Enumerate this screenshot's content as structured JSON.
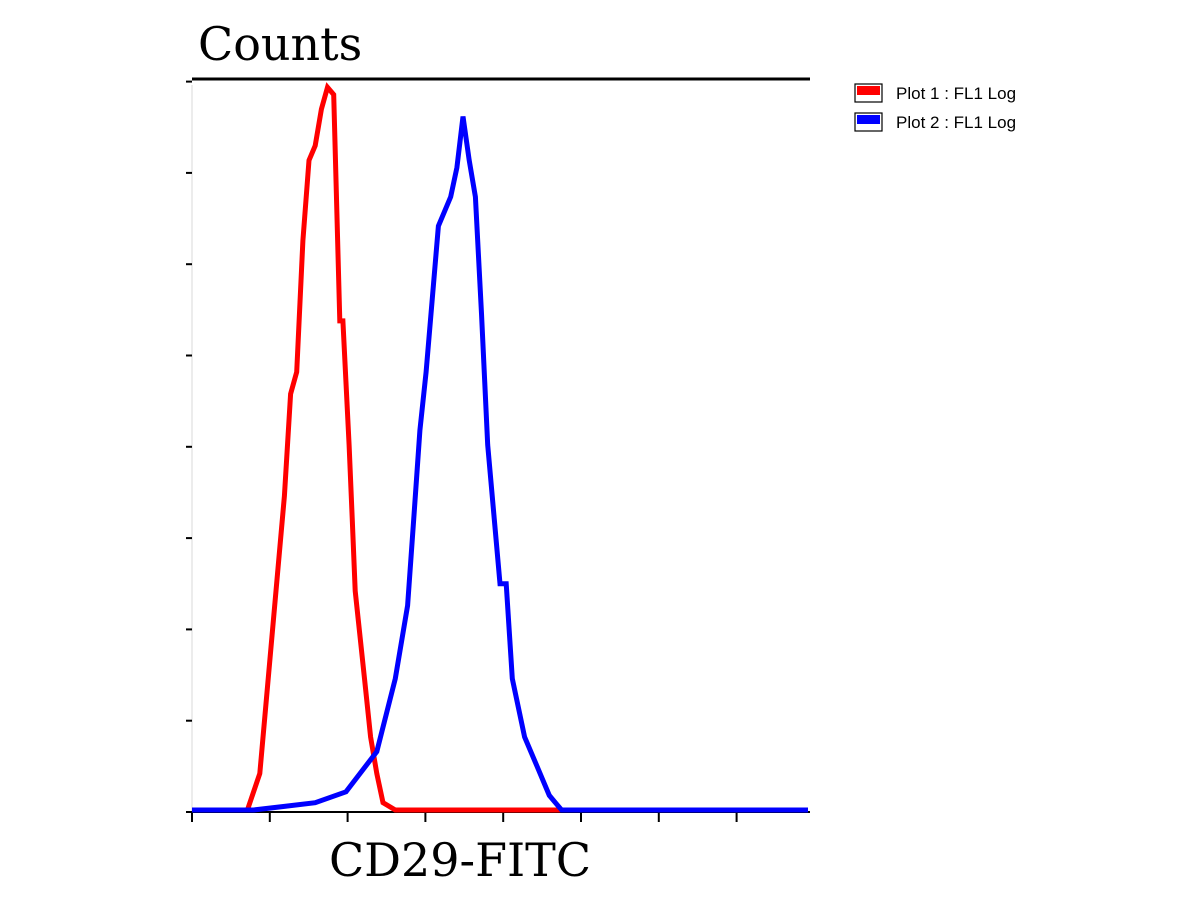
{
  "chart_data": {
    "type": "line",
    "title": "Counts",
    "xlabel": "CD29-FITC",
    "ylabel": "",
    "x_scale": "log",
    "xlim": [
      0,
      1
    ],
    "ylim": [
      0,
      1
    ],
    "grid": false,
    "legend_position": "top-right",
    "series": [
      {
        "name": "Plot 1 : FL1 Log",
        "color": "#ff0000",
        "x": [
          0,
          0.09,
          0.11,
          0.13,
          0.15,
          0.16,
          0.17,
          0.18,
          0.19,
          0.2,
          0.21,
          0.22,
          0.23,
          0.24,
          0.245,
          0.255,
          0.26,
          0.265,
          0.27,
          0.28,
          0.29,
          0.3,
          0.31,
          0.33,
          0.35,
          1
        ],
        "values": [
          0,
          0,
          0.05,
          0.24,
          0.43,
          0.57,
          0.6,
          0.78,
          0.89,
          0.91,
          0.96,
          0.99,
          0.98,
          0.67,
          0.67,
          0.5,
          0.4,
          0.3,
          0.26,
          0.18,
          0.1,
          0.05,
          0.01,
          0,
          0,
          0
        ]
      },
      {
        "name": "Plot 2 : FL1 Log",
        "color": "#0000ff",
        "x": [
          0,
          0.1,
          0.15,
          0.2,
          0.25,
          0.3,
          0.33,
          0.35,
          0.36,
          0.37,
          0.38,
          0.4,
          0.42,
          0.43,
          0.44,
          0.45,
          0.46,
          0.47,
          0.48,
          0.5,
          0.51,
          0.52,
          0.54,
          0.56,
          0.58,
          0.59,
          0.6,
          1
        ],
        "values": [
          0,
          0,
          0.005,
          0.01,
          0.025,
          0.08,
          0.18,
          0.28,
          0.4,
          0.52,
          0.6,
          0.8,
          0.84,
          0.88,
          0.95,
          0.89,
          0.84,
          0.68,
          0.5,
          0.31,
          0.31,
          0.18,
          0.1,
          0.06,
          0.02,
          0.01,
          0,
          0
        ]
      }
    ]
  }
}
